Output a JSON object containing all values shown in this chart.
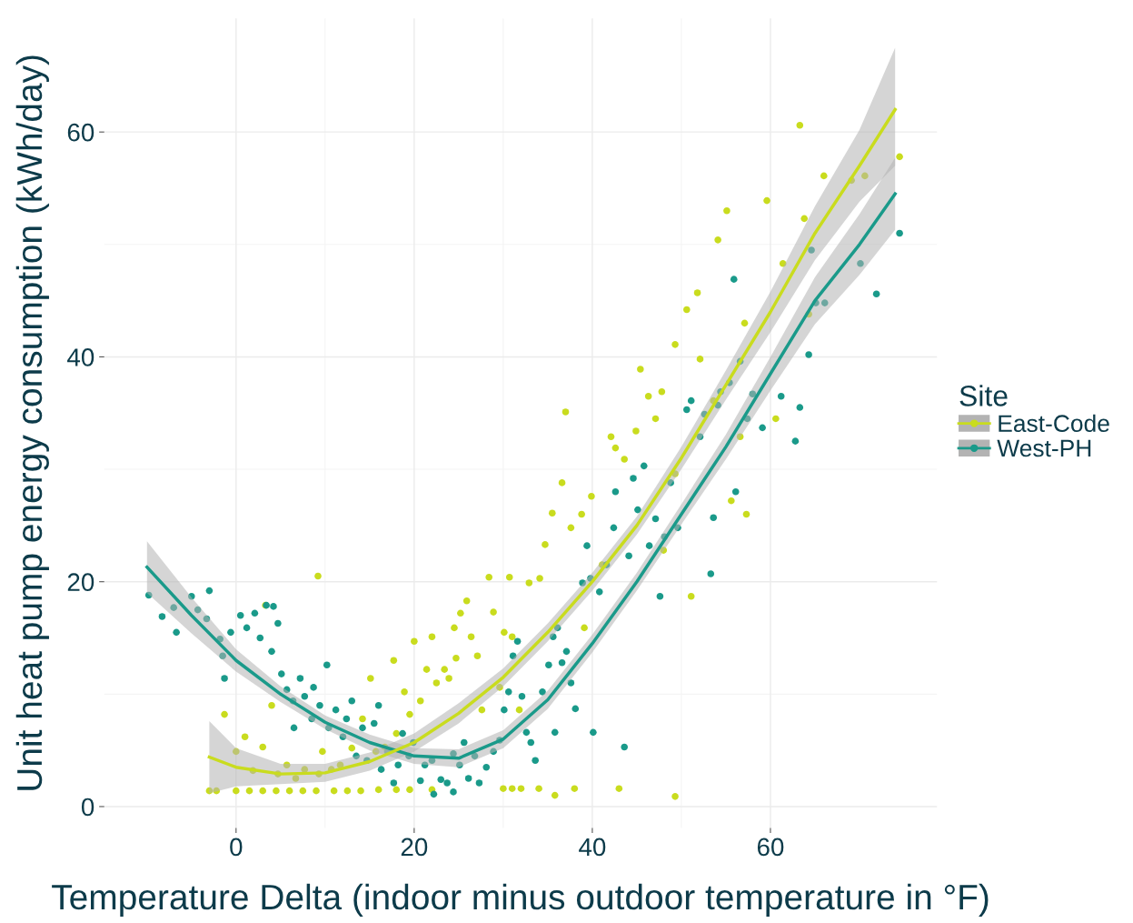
{
  "chart_data": {
    "type": "scatter",
    "xlabel": "Temperature Delta (indoor minus outdoor temperature in °F)",
    "ylabel": "Unit heat pump energy consumption (kWh/day)",
    "legend_title": "Site",
    "legend": "right",
    "grid": true,
    "marker": "circle",
    "xlim": [
      -14.8,
      78.7
    ],
    "ylim": [
      -1.9,
      70.1
    ],
    "xticks": [
      0,
      20,
      40,
      60
    ],
    "yticks": [
      0,
      20,
      40,
      60
    ],
    "series": [
      {
        "name": "East-Code",
        "color": "#c9dc1e",
        "x": [
          -3,
          -2.2,
          0,
          1.5,
          3,
          4.5,
          6,
          7.5,
          9,
          11,
          12.5,
          14,
          16,
          18,
          19.5,
          22,
          30,
          31,
          32,
          34,
          38,
          43,
          49.3,
          35.8,
          -1.3,
          1,
          0,
          1.9,
          3,
          3.3,
          4,
          4.7,
          5.7,
          6.7,
          7.7,
          9.2,
          9.3,
          9.7,
          10.7,
          11.7,
          13,
          14.2,
          15.1,
          15.7,
          16.7,
          17.7,
          18,
          18.9,
          19.5,
          20,
          20.7,
          21.4,
          22,
          22.5,
          23.4,
          23.9,
          24.5,
          24.7,
          25.2,
          25.9,
          26.4,
          27.1,
          27.6,
          28.4,
          28.9,
          29.6,
          30.1,
          30.7,
          31,
          31.8,
          32.9,
          34.1,
          34.7,
          35.5,
          36.6,
          37,
          37.6,
          38.8,
          39.1,
          39.9,
          41.1,
          42.1,
          42.6,
          43.6,
          44.9,
          45.4,
          46.3,
          47.1,
          47.8,
          48,
          49.3,
          49.3,
          50.6,
          51.1,
          51.8,
          52.1,
          53.6,
          54.1,
          55.1,
          55.6,
          56.6,
          57.3,
          57.1,
          59.6,
          60.6,
          61.4,
          63.3,
          63.8,
          64.3,
          66,
          69.1,
          70.6,
          74.5
        ],
        "values": [
          1.4,
          1.4,
          1.4,
          1.4,
          1.4,
          1.4,
          1.4,
          1.4,
          1.4,
          1.4,
          1.4,
          1.4,
          1.5,
          1.5,
          1.5,
          1.5,
          1.6,
          1.6,
          1.6,
          1.6,
          1.6,
          1.6,
          0.9,
          1.0,
          8.2,
          6.2,
          4.9,
          3.2,
          5.3,
          17.9,
          9,
          2.9,
          3.7,
          2.5,
          3.3,
          20.5,
          2.9,
          4.9,
          3.3,
          3.7,
          5.2,
          7.8,
          11.4,
          4.9,
          5.3,
          13,
          6.5,
          10.2,
          8.2,
          14.7,
          9.4,
          12.2,
          15.1,
          11,
          12.2,
          11.4,
          15.9,
          13.2,
          17.2,
          18.3,
          15.1,
          13.4,
          8.6,
          20.4,
          17.3,
          10.6,
          15.5,
          20.4,
          15.1,
          8.6,
          19.9,
          20.3,
          23.3,
          26.1,
          28.8,
          35.1,
          24.8,
          26,
          15.9,
          27.6,
          21.5,
          32.9,
          31.9,
          30.9,
          33.4,
          38.9,
          36.5,
          34.5,
          36.9,
          22.8,
          29.6,
          41.1,
          44.2,
          18.7,
          45.7,
          39.8,
          36.1,
          50.4,
          53,
          27.2,
          32.9,
          26,
          43,
          53.9,
          34.5,
          48.3,
          60.6,
          52.3,
          43.8,
          56.1,
          55.7,
          56.1,
          57.8
        ]
      },
      {
        "name": "West-PH",
        "color": "#1a9a8a",
        "x": [
          -9.8,
          -8.3,
          -7,
          -6.7,
          -5,
          -4.3,
          -3,
          -3.3,
          -1.8,
          -1.5,
          -1.3,
          -0.6,
          0.5,
          1.2,
          2.1,
          2.7,
          3.4,
          4.2,
          4,
          4.7,
          5.1,
          5.7,
          6.4,
          6.5,
          7.2,
          7.7,
          8.5,
          8.7,
          9.4,
          10.2,
          10.4,
          11.2,
          12,
          12.4,
          13,
          13.5,
          14.2,
          14.7,
          15.5,
          16,
          16.3,
          17,
          17.7,
          18.2,
          18.7,
          19.4,
          19.9,
          20.7,
          21.2,
          22,
          22.2,
          23,
          23.7,
          24.4,
          24.4,
          25.1,
          25.6,
          26.1,
          26.8,
          27.3,
          28.1,
          28.9,
          29.6,
          30.1,
          30.6,
          31.1,
          31.6,
          32.1,
          32.6,
          33.1,
          33.6,
          34.4,
          35.1,
          35.6,
          35.8,
          36.1,
          36.6,
          37.1,
          37.6,
          38.1,
          38.9,
          39.4,
          39.8,
          40.1,
          40.8,
          41.6,
          42.4,
          42.6,
          43.6,
          44.1,
          44.6,
          45.1,
          45.8,
          46.4,
          47.1,
          47.6,
          48.1,
          48.8,
          49.6,
          50.6,
          51.1,
          52.1,
          52.6,
          53.3,
          53.6,
          54.1,
          54.4,
          55.4,
          55.9,
          56.1,
          56.6,
          57.4,
          58,
          59.1,
          61.2,
          62.8,
          63.3,
          64.3,
          64.6,
          65.1,
          66.1,
          70.1,
          71.9,
          74.5
        ],
        "values": [
          18.8,
          16.9,
          17.7,
          15.5,
          18.7,
          17.5,
          19.2,
          16.7,
          14.9,
          13.4,
          11.4,
          15.5,
          17,
          15.9,
          17.2,
          15,
          17.9,
          17.8,
          13.8,
          16.3,
          11.8,
          10.4,
          9.4,
          7,
          11.4,
          9.8,
          7.8,
          10.6,
          9,
          12.6,
          7,
          8.6,
          6.2,
          7.8,
          9.4,
          4.5,
          7,
          4.1,
          7.4,
          9,
          3.3,
          4.9,
          2.1,
          3.7,
          6.5,
          4.5,
          5.7,
          2.3,
          3.7,
          4.1,
          1.1,
          2.4,
          2.1,
          4.7,
          1.3,
          3.7,
          5.7,
          2.5,
          4.5,
          2.1,
          3.5,
          4.9,
          5.9,
          8.6,
          10.2,
          13.4,
          14.7,
          9.8,
          6.6,
          5.7,
          4.1,
          10.2,
          12.6,
          15.1,
          6.6,
          15.9,
          12.8,
          13.8,
          11,
          8.7,
          19.9,
          23.2,
          20.3,
          6.6,
          19.1,
          21.5,
          24.8,
          28,
          5.3,
          22.3,
          29.2,
          26.4,
          30.3,
          23.2,
          25.6,
          18.7,
          24,
          28.8,
          24.8,
          35.3,
          36.1,
          32.9,
          34.9,
          20.7,
          25.7,
          35.7,
          36.9,
          37.7,
          46.9,
          28,
          39.6,
          34.5,
          36.7,
          33.7,
          36.5,
          32.5,
          35.5,
          40.2,
          49.5,
          44.8,
          44.8,
          48.3,
          45.6,
          51
        ]
      },
      {
        "type": "line",
        "marker": "none",
        "color": "#1a9a8a",
        "x": [
          -10,
          -5,
          0,
          5,
          10,
          15,
          20,
          25,
          30,
          35,
          40,
          45,
          50,
          55,
          60,
          65,
          70,
          74
        ],
        "values": [
          21.3,
          17,
          13,
          10,
          7.5,
          5.7,
          4.5,
          4.3,
          6,
          9.5,
          14.5,
          20,
          26,
          32,
          38.5,
          45,
          50,
          54.5
        ],
        "lower": [
          19,
          15.4,
          12,
          9.3,
          6.9,
          5.0,
          3.8,
          3.5,
          5.2,
          8.7,
          13.7,
          19.2,
          25.1,
          30.9,
          37,
          42.9,
          47.3,
          51.3
        ],
        "upper": [
          23.6,
          18.6,
          14,
          10.7,
          8.1,
          6.4,
          5.2,
          5.1,
          6.8,
          10.3,
          15.3,
          20.8,
          26.9,
          33.1,
          40,
          47.1,
          52.7,
          57.7
        ]
      },
      {
        "type": "line",
        "marker": "none",
        "color": "#c9dc1e",
        "x": [
          -3,
          0,
          5,
          10,
          15,
          20,
          25,
          30,
          35,
          40,
          45,
          50,
          55,
          60,
          65,
          70,
          74
        ],
        "values": [
          4.4,
          3.5,
          2.9,
          3,
          4,
          5.7,
          8.3,
          11.5,
          15.5,
          20,
          25,
          31,
          37.5,
          44,
          51,
          57,
          62
        ],
        "lower": [
          1.2,
          1.8,
          2.0,
          2.2,
          3.2,
          4.9,
          7.4,
          10.7,
          14.7,
          19.2,
          24.2,
          30,
          36.2,
          42.2,
          48.6,
          53.8,
          57
        ],
        "upper": [
          7.6,
          5.2,
          3.8,
          3.8,
          4.8,
          6.5,
          9.2,
          12.3,
          16.3,
          20.8,
          25.8,
          32,
          38.8,
          45.8,
          53.4,
          60.2,
          67.5
        ]
      }
    ]
  }
}
